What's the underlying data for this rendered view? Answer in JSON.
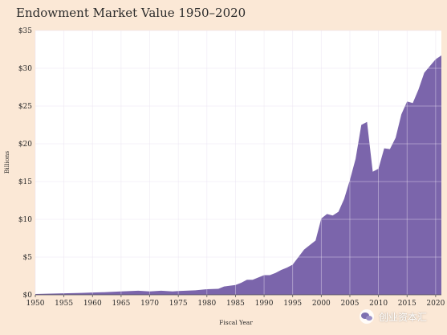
{
  "colors": {
    "background": "#fbe8d6",
    "plot_bg": "#ffffff",
    "area": "#7b65ab",
    "grid": "#e8e0f0"
  },
  "watermark": {
    "text": "创业资本汇",
    "icon": "wechat-icon"
  },
  "chart_data": {
    "type": "area",
    "title": "Endowment Market Value 1950–2020",
    "xlabel": "Fiscal Year",
    "ylabel": "Billions",
    "xlim": [
      1950,
      2021
    ],
    "ylim": [
      0,
      35
    ],
    "grid": true,
    "x_ticks": [
      1950,
      1955,
      1960,
      1965,
      1970,
      1975,
      1980,
      1985,
      1990,
      1995,
      2000,
      2005,
      2010,
      2015,
      2020
    ],
    "x_tick_labels": [
      "1950",
      "1955",
      "1960",
      "1965",
      "1970",
      "1975",
      "1980",
      "1985",
      "1990",
      "1995",
      "2000",
      "2005",
      "2010",
      "2015",
      "2020"
    ],
    "y_ticks": [
      0,
      5,
      10,
      15,
      20,
      25,
      30,
      35
    ],
    "y_tick_labels": [
      "$0",
      "$5",
      "$10",
      "$15",
      "$20",
      "$25",
      "$30",
      "$35"
    ],
    "series": [
      {
        "x": [
          1950,
          1952,
          1955,
          1958,
          1960,
          1962,
          1965,
          1968,
          1970,
          1972,
          1974,
          1975,
          1978,
          1980,
          1982,
          1983,
          1985,
          1986,
          1987,
          1988,
          1989,
          1990,
          1991,
          1992,
          1993,
          1994,
          1995,
          1996,
          1997,
          1998,
          1999,
          2000,
          2001,
          2002,
          2003,
          2004,
          2005,
          2006,
          2007,
          2008,
          2009,
          2010,
          2011,
          2012,
          2013,
          2014,
          2015,
          2016,
          2017,
          2018,
          2019,
          2020,
          2021
        ],
        "y": [
          0.1,
          0.15,
          0.2,
          0.25,
          0.3,
          0.35,
          0.45,
          0.55,
          0.45,
          0.55,
          0.45,
          0.5,
          0.6,
          0.75,
          0.8,
          1.1,
          1.3,
          1.6,
          2.0,
          2.0,
          2.3,
          2.6,
          2.6,
          2.9,
          3.3,
          3.6,
          4.0,
          5.0,
          6.0,
          6.6,
          7.2,
          10.1,
          10.7,
          10.5,
          11.0,
          12.7,
          15.2,
          18.0,
          22.5,
          22.9,
          16.3,
          16.7,
          19.4,
          19.3,
          20.8,
          23.9,
          25.6,
          25.4,
          27.2,
          29.4,
          30.3,
          31.2,
          31.7
        ]
      }
    ]
  }
}
